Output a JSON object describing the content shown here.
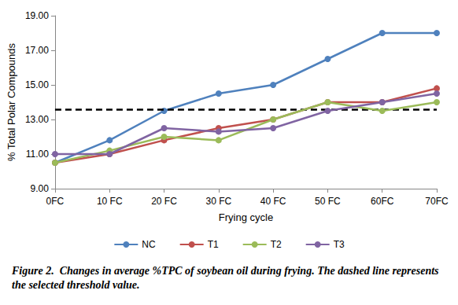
{
  "chart_data": {
    "type": "line",
    "title": "Figure 2.",
    "subtitle": "Changes in average %TPC of soybean oil during frying. The dashed line represents the selected threshold value.",
    "x_label": "Frying cycle",
    "y_label": "% Total Polar Compounds",
    "categories": [
      "0FC",
      "10 FC",
      "20 FC",
      "30 FC",
      "40 FC",
      "50 FC",
      "60FC",
      "70FC"
    ],
    "series": [
      {
        "name": "NC",
        "color": "#4F81BD",
        "values": [
          10.5,
          11.8,
          13.5,
          14.5,
          15.0,
          16.5,
          18.0,
          18.0
        ]
      },
      {
        "name": "T1",
        "color": "#C0504D",
        "values": [
          10.5,
          11.0,
          11.8,
          12.5,
          13.0,
          14.0,
          14.0,
          14.8
        ]
      },
      {
        "name": "T2",
        "color": "#9BBB59",
        "values": [
          10.5,
          11.2,
          12.0,
          11.8,
          13.0,
          14.0,
          13.5,
          14.0
        ]
      },
      {
        "name": "T3",
        "color": "#8064A2",
        "values": [
          11.0,
          11.0,
          12.5,
          12.3,
          12.5,
          13.5,
          14.0,
          14.5
        ]
      }
    ],
    "threshold": 13.6,
    "ylim": [
      9,
      19
    ],
    "yticks": [
      {
        "value": 9,
        "label": "9.00"
      },
      {
        "value": 11,
        "label": "11.00"
      },
      {
        "value": 13,
        "label": "13.00"
      },
      {
        "value": 15,
        "label": "15.00"
      },
      {
        "value": 17,
        "label": "17.00"
      },
      {
        "value": 19,
        "label": "19.00"
      }
    ],
    "grid": false,
    "legend": "bottom",
    "marker": "circle",
    "line_style": "solid"
  }
}
